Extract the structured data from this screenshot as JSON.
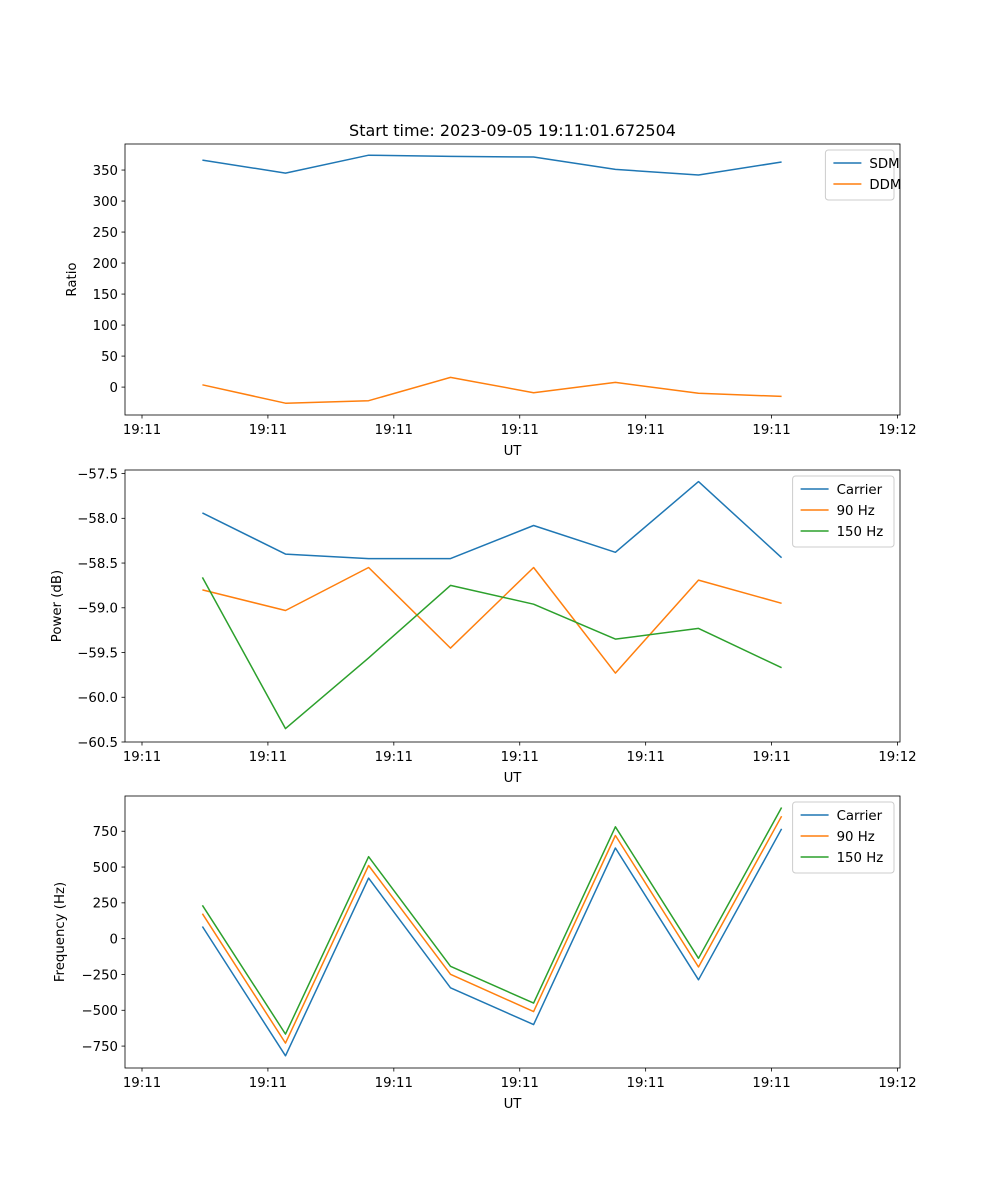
{
  "chart_data": [
    {
      "type": "line",
      "title": "Start time: 2023-09-05 19:11:01.672504",
      "xlabel": "UT",
      "ylabel": "Ratio",
      "x_unit": "seconds after 19:11:00 UT",
      "x": [
        4.8,
        11.4,
        18.0,
        24.5,
        31.1,
        37.6,
        44.2,
        50.8
      ],
      "xlim": [
        -1.35,
        60.2
      ],
      "xticks": [
        0,
        10,
        20,
        30,
        40,
        50,
        60
      ],
      "xtick_labels": [
        "19:11",
        "19:11",
        "19:11",
        "19:11",
        "19:11",
        "19:11",
        "19:12"
      ],
      "ylim": [
        -45,
        392
      ],
      "yticks": [
        0,
        50,
        100,
        150,
        200,
        250,
        300,
        350
      ],
      "ytick_labels": [
        "0",
        "50",
        "100",
        "150",
        "200",
        "250",
        "300",
        "350"
      ],
      "grid": false,
      "legend_position": "top-right",
      "series": [
        {
          "name": "SDM",
          "color": "#1f77b4",
          "values": [
            366,
            345,
            374,
            372,
            371,
            351,
            342,
            363
          ]
        },
        {
          "name": "DDM",
          "color": "#ff7f0e",
          "values": [
            3.7,
            -26,
            -22,
            15.7,
            -9,
            7.6,
            -10,
            -15
          ]
        }
      ]
    },
    {
      "type": "line",
      "title": "",
      "xlabel": "UT",
      "ylabel": "Power (dB)",
      "x_unit": "seconds after 19:11:00 UT",
      "x": [
        4.8,
        11.4,
        18.0,
        24.5,
        31.1,
        37.6,
        44.2,
        50.8
      ],
      "xlim": [
        -1.35,
        60.2
      ],
      "xticks": [
        0,
        10,
        20,
        30,
        40,
        50,
        60
      ],
      "xtick_labels": [
        "19:11",
        "19:11",
        "19:11",
        "19:11",
        "19:11",
        "19:11",
        "19:12"
      ],
      "ylim": [
        -60.5,
        -57.46
      ],
      "yticks": [
        -60.5,
        -60.0,
        -59.5,
        -59.0,
        -58.5,
        -58.0,
        -57.5
      ],
      "ytick_labels": [
        "−60.5",
        "−60.0",
        "−59.5",
        "−59.0",
        "−58.5",
        "−58.0",
        "−57.5"
      ],
      "grid": false,
      "legend_position": "top-right",
      "series": [
        {
          "name": "Carrier",
          "color": "#1f77b4",
          "values": [
            -57.94,
            -58.4,
            -58.45,
            -58.45,
            -58.08,
            -58.38,
            -57.59,
            -58.44
          ]
        },
        {
          "name": "90 Hz",
          "color": "#ff7f0e",
          "values": [
            -58.8,
            -59.03,
            -58.55,
            -59.45,
            -58.55,
            -59.73,
            -58.69,
            -58.95
          ]
        },
        {
          "name": "150 Hz",
          "color": "#2ca02c",
          "values": [
            -58.66,
            -60.35,
            -59.56,
            -58.75,
            -58.96,
            -59.35,
            -59.23,
            -59.67
          ]
        }
      ]
    },
    {
      "type": "line",
      "title": "",
      "xlabel": "UT",
      "ylabel": "Frequency (Hz)",
      "x_unit": "seconds after 19:11:00 UT",
      "x": [
        4.8,
        11.4,
        18.0,
        24.5,
        31.1,
        37.6,
        44.2,
        50.8
      ],
      "xlim": [
        -1.35,
        60.2
      ],
      "xticks": [
        0,
        10,
        20,
        30,
        40,
        50,
        60
      ],
      "xtick_labels": [
        "19:11",
        "19:11",
        "19:11",
        "19:11",
        "19:11",
        "19:11",
        "19:12"
      ],
      "ylim": [
        -903,
        996
      ],
      "yticks": [
        -750,
        -500,
        -250,
        0,
        250,
        500,
        750
      ],
      "ytick_labels": [
        "−750",
        "−500",
        "−250",
        "0",
        "250",
        "500",
        "750"
      ],
      "grid": false,
      "legend_position": "top-right",
      "series": [
        {
          "name": "Carrier",
          "color": "#1f77b4",
          "values": [
            85,
            -818,
            423,
            -343,
            -600,
            633,
            -287,
            767
          ]
        },
        {
          "name": "90 Hz",
          "color": "#ff7f0e",
          "values": [
            174,
            -729,
            511,
            -249,
            -509,
            720,
            -198,
            855
          ]
        },
        {
          "name": "150 Hz",
          "color": "#2ca02c",
          "values": [
            233,
            -666,
            572,
            -193,
            -450,
            781,
            -137,
            916
          ]
        }
      ]
    }
  ]
}
